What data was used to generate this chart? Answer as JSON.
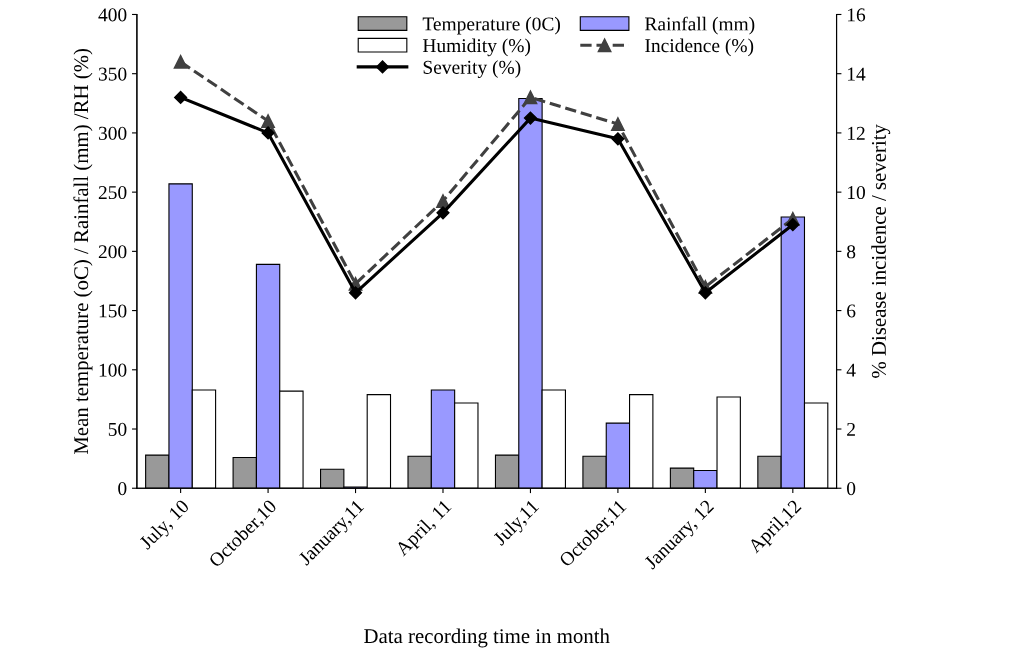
{
  "chart_data": {
    "type": "bar",
    "xlabel": "Data recording time in month",
    "ylabel": "Mean temperature (oC) / Rainfall (mm) /RH (%)",
    "y2label": "% Disease incidence / severity",
    "categories": [
      "July, 10",
      "October,10",
      "January,11",
      "April, 11",
      "July,11",
      "October,11",
      "January, 12",
      "April,12"
    ],
    "series": [
      {
        "name": "Temperature (0C)",
        "color": "#999999",
        "values": [
          28,
          26,
          16,
          27,
          28,
          27,
          17,
          27
        ]
      },
      {
        "name": "Rainfall (mm)",
        "color": "#9999ff",
        "values": [
          257,
          189,
          1,
          83,
          329,
          55,
          15,
          229
        ]
      },
      {
        "name": "Humidity (%)",
        "color": "#ffffff",
        "values": [
          83,
          82,
          79,
          72,
          83,
          79,
          77,
          72
        ]
      },
      {
        "name": "Incidence (%)",
        "type": "line",
        "axis": "y2",
        "color": "#404040",
        "line_style": "dashed",
        "marker": "triangle",
        "values": [
          14.4,
          12.4,
          6.9,
          9.7,
          13.2,
          12.3,
          6.8,
          9.1
        ]
      },
      {
        "name": "Severity (%)",
        "type": "line",
        "axis": "y2",
        "color": "#000000",
        "line_style": "solid",
        "marker": "diamond",
        "values": [
          13.2,
          12.0,
          6.6,
          9.3,
          12.5,
          11.8,
          6.6,
          8.9
        ]
      }
    ],
    "ylim": [
      0,
      400
    ],
    "yticks": [
      0,
      50,
      100,
      150,
      200,
      250,
      300,
      350,
      400
    ],
    "y2lim": [
      0,
      16
    ],
    "y2ticks": [
      0,
      2,
      4,
      6,
      8,
      10,
      12,
      14,
      16
    ],
    "grid": false,
    "legend": "top"
  }
}
